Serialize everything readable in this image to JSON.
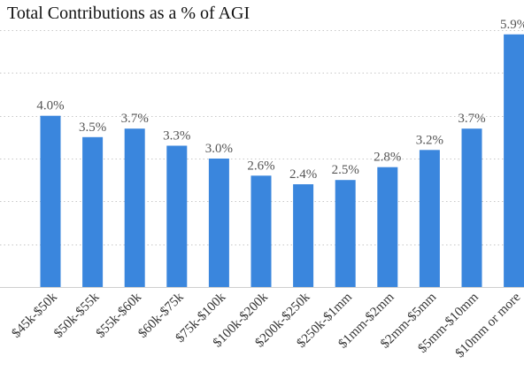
{
  "chart_data": {
    "type": "bar",
    "title": "Total Contributions as a % of AGI",
    "categories": [
      "$45k-$50k",
      "$50k-$55k",
      "$55k-$60k",
      "$60k-$75k",
      "$75k-$100k",
      "$100k-$200k",
      "$200k-$250k",
      "$250k-$1mm",
      "$1mm-$2mm",
      "$2mm-$5mm",
      "$5mm-$10mm",
      "$10mm or more"
    ],
    "values": [
      4.0,
      3.5,
      3.7,
      3.3,
      3.0,
      2.6,
      2.4,
      2.5,
      2.8,
      3.2,
      3.7,
      5.9
    ],
    "data_labels": [
      "4.0%",
      "3.5%",
      "3.7%",
      "3.3%",
      "3.0%",
      "2.6%",
      "2.4%",
      "2.5%",
      "2.8%",
      "3.2%",
      "3.7%",
      "5.9%"
    ],
    "ylim": [
      0,
      6
    ],
    "grid": true,
    "legend": "none",
    "bar_color": "#3a86dd"
  }
}
